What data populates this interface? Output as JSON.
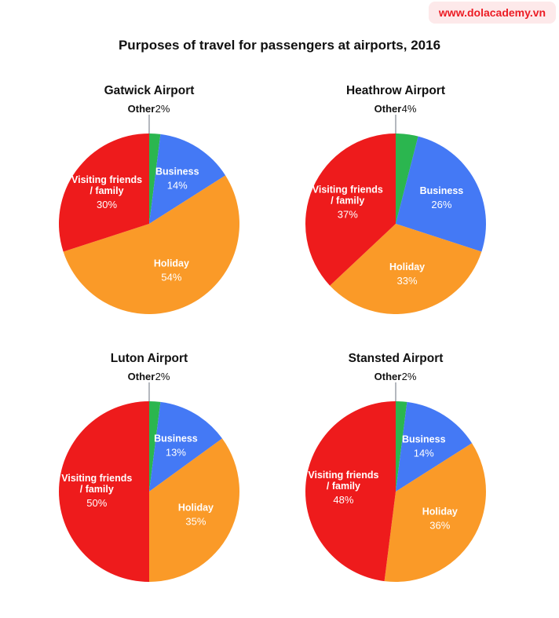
{
  "watermark": "www.dolacademy.vn",
  "chart_data": {
    "title": "Purposes of travel for passengers at airports, 2016",
    "colors": {
      "Other": "#2bb64f",
      "Business": "#4479f5",
      "Holiday": "#fa9a28",
      "Visiting friends / family": "#ee1b1c"
    },
    "charts": [
      {
        "type": "pie",
        "title": "Gatwick Airport",
        "slices": [
          {
            "label": "Other",
            "value": 2
          },
          {
            "label": "Business",
            "value": 14
          },
          {
            "label": "Holiday",
            "value": 54
          },
          {
            "label": "Visiting friends / family",
            "value": 30
          }
        ]
      },
      {
        "type": "pie",
        "title": "Heathrow Airport",
        "slices": [
          {
            "label": "Other",
            "value": 4
          },
          {
            "label": "Business",
            "value": 26
          },
          {
            "label": "Holiday",
            "value": 33
          },
          {
            "label": "Visiting friends / family",
            "value": 37
          }
        ]
      },
      {
        "type": "pie",
        "title": "Luton Airport",
        "slices": [
          {
            "label": "Other",
            "value": 2
          },
          {
            "label": "Business",
            "value": 13
          },
          {
            "label": "Holiday",
            "value": 35
          },
          {
            "label": "Visiting friends / family",
            "value": 50
          }
        ]
      },
      {
        "type": "pie",
        "title": "Stansted Airport",
        "slices": [
          {
            "label": "Other",
            "value": 2
          },
          {
            "label": "Business",
            "value": 14
          },
          {
            "label": "Holiday",
            "value": 36
          },
          {
            "label": "Visiting friends / family",
            "value": 48
          }
        ]
      }
    ]
  }
}
